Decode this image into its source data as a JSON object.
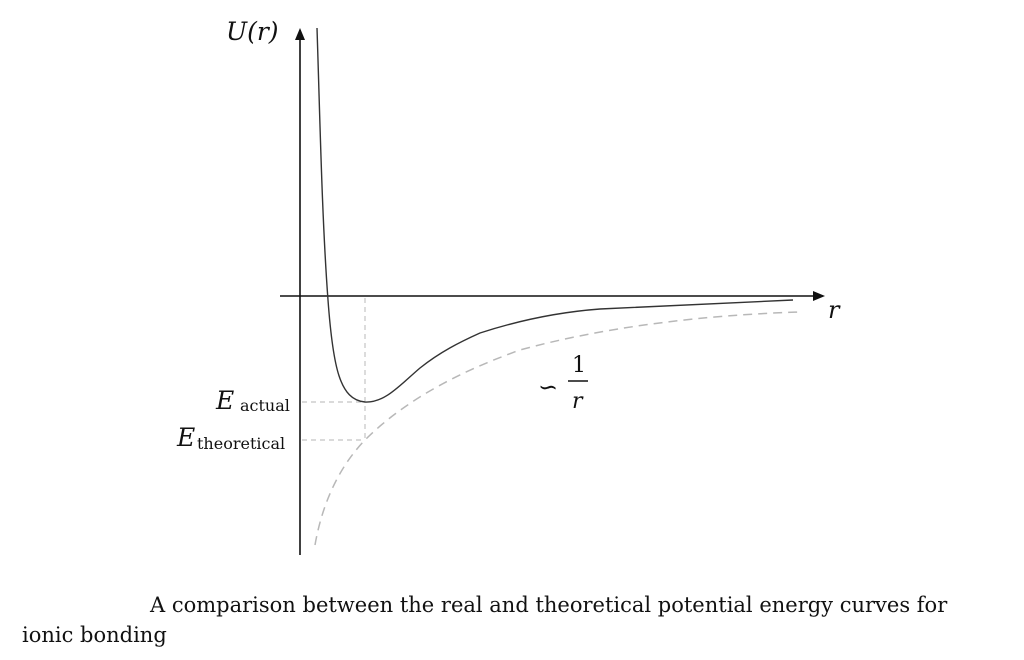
{
  "diagram": {
    "y_axis_label": "U(r)",
    "x_axis_label": "r",
    "e_actual": {
      "symbol": "E",
      "subscript": "actual"
    },
    "e_theoretical": {
      "symbol": "E",
      "subscript": "theoretical"
    },
    "asymptote": {
      "prefix": "∽",
      "numerator": "1",
      "denominator": "r"
    },
    "colors": {
      "ink": "#111111",
      "dashed": "#b8b8b8",
      "solid_curve": "#333333"
    }
  },
  "caption": "A comparison between the real and theoretical potential energy curves for ionic bonding"
}
